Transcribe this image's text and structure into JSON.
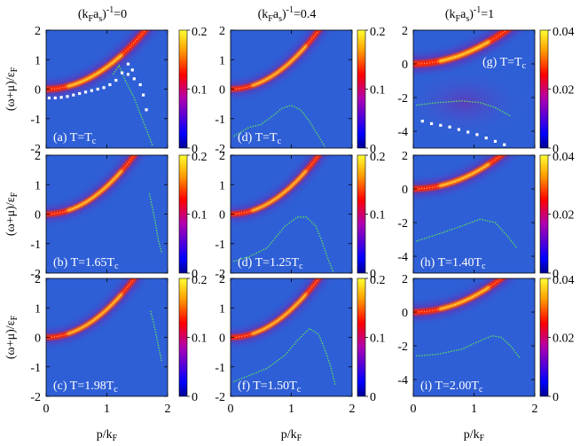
{
  "chart_data": {
    "type": "heatmap",
    "title": "",
    "xlabel": "p/k_F",
    "ylabel": "(ω+μ)/ε_F",
    "colormap": [
      "#0000ff",
      "#ff0000",
      "#ffff00"
    ],
    "background_color": "#2f5fd6",
    "columns": [
      {
        "header": "(k_F a_s)^-1=0",
        "header_main": "(k",
        "header_sub1": "F",
        "header_mid": "a",
        "header_sub2": "s",
        "header_sup": "-1",
        "header_tail": "=0",
        "xlim": [
          0,
          2
        ],
        "xticks": [
          "0",
          "1",
          "2"
        ],
        "ylim": [
          -2,
          2
        ],
        "yticks": [
          "2",
          "1",
          "0",
          "-1",
          "-2"
        ],
        "yticks_values": [
          2,
          1,
          0,
          -1,
          -2
        ],
        "colorbar_ticks": [
          "0.2",
          "0.1",
          "0"
        ],
        "colorbar_values": [
          0.2,
          0.1,
          0
        ],
        "panels": [
          {
            "label": "(a) T=T",
            "sub": "c",
            "temperature": "T=T_c",
            "peak_a": 0.55,
            "peak_b": 0.75,
            "width": 0.22,
            "green_line": [
              [
                1.1,
                0.5
              ],
              [
                1.2,
                0.8
              ],
              [
                1.3,
                0.3
              ],
              [
                1.45,
                -0.3
              ],
              [
                1.6,
                -1.1
              ],
              [
                1.75,
                -1.9
              ]
            ],
            "white_points": [
              [
                0.05,
                -0.3
              ],
              [
                0.15,
                -0.3
              ],
              [
                0.25,
                -0.28
              ],
              [
                0.35,
                -0.25
              ],
              [
                0.45,
                -0.2
              ],
              [
                0.55,
                -0.15
              ],
              [
                0.65,
                -0.1
              ],
              [
                0.75,
                -0.05
              ],
              [
                0.85,
                0.0
              ],
              [
                0.95,
                0.05
              ],
              [
                1.05,
                0.15
              ],
              [
                1.15,
                0.3
              ],
              [
                1.25,
                0.55
              ],
              [
                1.35,
                0.5
              ],
              [
                1.45,
                0.35
              ],
              [
                1.55,
                0.15
              ],
              [
                1.6,
                -0.2
              ],
              [
                1.65,
                -0.7
              ],
              [
                1.35,
                0.85
              ],
              [
                1.42,
                0.65
              ]
            ]
          },
          {
            "label": "(b) T=1.65T",
            "sub": "c",
            "temperature": "T=1.65T_c",
            "peak_a": 0.3,
            "peak_b": 0.95,
            "width": 0.16,
            "green_line": [
              [
                1.7,
                0.7
              ],
              [
                1.75,
                0.2
              ],
              [
                1.8,
                -0.3
              ],
              [
                1.85,
                -0.9
              ],
              [
                1.9,
                -1.3
              ]
            ],
            "white_points": []
          },
          {
            "label": "(c) T=1.98T",
            "sub": "c",
            "temperature": "T=1.98T_c",
            "peak_a": 0.25,
            "peak_b": 0.95,
            "width": 0.15,
            "green_line": [
              [
                1.72,
                0.9
              ],
              [
                1.78,
                0.4
              ],
              [
                1.85,
                -0.3
              ],
              [
                1.9,
                -0.8
              ]
            ],
            "white_points": []
          }
        ]
      },
      {
        "header": "(k_F a_s)^-1=0.4",
        "header_main": "(k",
        "header_sub1": "F",
        "header_mid": "a",
        "header_sub2": "s",
        "header_sup": "-1",
        "header_tail": "=0.4",
        "xlim": [
          0,
          2
        ],
        "xticks": [
          "0",
          "1",
          "2"
        ],
        "ylim": [
          -2,
          2
        ],
        "yticks": [
          "2",
          "1",
          "0",
          "-1",
          "-2"
        ],
        "yticks_values": [
          2,
          1,
          0,
          -1,
          -2
        ],
        "colorbar_ticks": [
          "0.2",
          "0.1",
          "0"
        ],
        "colorbar_values": [
          0.2,
          0.1,
          0
        ],
        "panels": [
          {
            "label": "(d) T=T",
            "sub": "c",
            "temperature": "T=T_c",
            "peak_a": 0.3,
            "peak_b": 0.95,
            "width": 0.14,
            "green_line": [
              [
                0.05,
                -1.6
              ],
              [
                0.3,
                -1.3
              ],
              [
                0.5,
                -1.2
              ],
              [
                0.7,
                -0.9
              ],
              [
                0.85,
                -0.65
              ],
              [
                1.0,
                -0.55
              ],
              [
                1.15,
                -0.7
              ],
              [
                1.3,
                -1.1
              ],
              [
                1.45,
                -1.6
              ],
              [
                1.55,
                -1.95
              ]
            ],
            "white_points": []
          },
          {
            "label": "(d) T=1.25T",
            "sub": "c",
            "temperature": "T=1.25T_c",
            "peak_a": 0.3,
            "peak_b": 0.95,
            "width": 0.14,
            "green_line": [
              [
                0.05,
                -1.6
              ],
              [
                0.3,
                -1.45
              ],
              [
                0.6,
                -1.15
              ],
              [
                0.9,
                -0.4
              ],
              [
                1.1,
                -0.1
              ],
              [
                1.25,
                -0.1
              ],
              [
                1.4,
                -0.4
              ],
              [
                1.5,
                -0.9
              ],
              [
                1.6,
                -1.5
              ],
              [
                1.7,
                -2.0
              ]
            ],
            "white_points": []
          },
          {
            "label": "(f) T=1.50T",
            "sub": "c",
            "temperature": "T=1.50T_c",
            "peak_a": 0.3,
            "peak_b": 0.95,
            "width": 0.14,
            "green_line": [
              [
                0.05,
                -1.5
              ],
              [
                0.3,
                -1.3
              ],
              [
                0.6,
                -1.05
              ],
              [
                0.9,
                -0.6
              ],
              [
                1.1,
                -0.1
              ],
              [
                1.3,
                0.3
              ],
              [
                1.45,
                0.1
              ],
              [
                1.55,
                -0.4
              ],
              [
                1.65,
                -1.0
              ],
              [
                1.72,
                -1.6
              ]
            ],
            "white_points": []
          }
        ]
      },
      {
        "header": "(k_F a_s)^-1=1",
        "header_main": "(k",
        "header_sub1": "F",
        "header_mid": "a",
        "header_sub2": "s",
        "header_sup": "-1",
        "header_tail": "=1",
        "xlim": [
          0,
          2
        ],
        "xticks": [
          "0",
          "1",
          "2"
        ],
        "ylim": [
          -5,
          2
        ],
        "yticks": [
          "2",
          "0",
          "-2",
          "-4"
        ],
        "yticks_values": [
          2,
          0,
          -2,
          -4
        ],
        "colorbar_ticks": [
          "0.04",
          "0.02",
          "0"
        ],
        "colorbar_values": [
          0.04,
          0.02,
          0
        ],
        "panels": [
          {
            "label": "(g) T=T",
            "sub": "c",
            "temperature": "T=T_c",
            "label_position": "top-right",
            "peak_a": 0.3,
            "peak_b": 0.85,
            "width": 0.28,
            "broad_glow": true,
            "green_line": [
              [
                0.05,
                -2.45
              ],
              [
                0.4,
                -2.3
              ],
              [
                0.8,
                -2.2
              ],
              [
                1.1,
                -2.3
              ],
              [
                1.35,
                -2.6
              ],
              [
                1.6,
                -3.1
              ]
            ],
            "white_points": [
              [
                0.15,
                -3.4
              ],
              [
                0.3,
                -3.55
              ],
              [
                0.45,
                -3.65
              ],
              [
                0.6,
                -3.75
              ],
              [
                0.75,
                -3.9
              ],
              [
                0.9,
                -4.05
              ],
              [
                1.05,
                -4.2
              ],
              [
                1.2,
                -4.4
              ],
              [
                1.35,
                -4.6
              ],
              [
                1.5,
                -4.8
              ]
            ]
          },
          {
            "label": "(h) T=1.40T",
            "sub": "c",
            "temperature": "T=1.40T_c",
            "peak_a": 0.3,
            "peak_b": 0.95,
            "width": 0.2,
            "green_line": [
              [
                0.05,
                -3.1
              ],
              [
                0.4,
                -2.7
              ],
              [
                0.8,
                -2.2
              ],
              [
                1.1,
                -1.8
              ],
              [
                1.35,
                -2.0
              ],
              [
                1.55,
                -2.8
              ],
              [
                1.7,
                -3.5
              ]
            ],
            "white_points": []
          },
          {
            "label": "(i) T=2.00T",
            "sub": "c",
            "temperature": "T=2.00T_c",
            "peak_a": 0.3,
            "peak_b": 0.95,
            "width": 0.2,
            "green_line": [
              [
                0.05,
                -2.6
              ],
              [
                0.4,
                -2.5
              ],
              [
                0.8,
                -2.2
              ],
              [
                1.1,
                -1.7
              ],
              [
                1.3,
                -1.4
              ],
              [
                1.45,
                -1.5
              ],
              [
                1.6,
                -2.0
              ],
              [
                1.75,
                -2.7
              ]
            ],
            "white_points": []
          }
        ]
      }
    ]
  }
}
